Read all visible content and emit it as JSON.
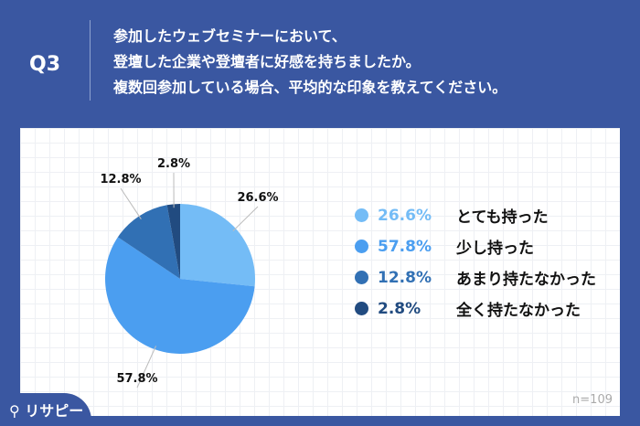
{
  "header": {
    "q": "Q3",
    "lines": [
      "参加したウェブセミナーにおいて、",
      "登壇した企業や登壇者に好感を持ちましたか。",
      "複数回参加している場合、平均的な印象を教えてください。"
    ]
  },
  "footer": {
    "logo": "リサピー",
    "n": "n=109"
  },
  "chart_data": {
    "type": "pie",
    "categories": [
      "とても持った",
      "少し持った",
      "あまり持たなかった",
      "全く持たなかった"
    ],
    "values": [
      26.6,
      57.8,
      12.8,
      2.8
    ],
    "labels": [
      "26.6%",
      "57.8%",
      "12.8%",
      "2.8%"
    ],
    "colors": [
      "#74bcf6",
      "#4b9ef0",
      "#3170b4",
      "#214b80"
    ],
    "legend": "right"
  }
}
